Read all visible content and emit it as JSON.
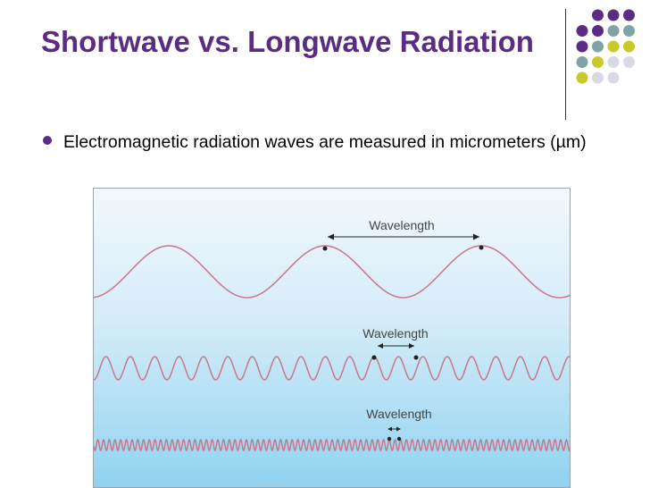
{
  "slide": {
    "title": "Shortwave vs. Longwave Radiation",
    "bullets": [
      "Electromagnetic radiation waves are measured in micrometers (µm)"
    ]
  },
  "figure": {
    "labels": [
      "Wavelength",
      "Wavelength",
      "Wavelength"
    ]
  },
  "colors": {
    "title": "#5b2c83",
    "dot_purple": "#5b2c83",
    "dot_teal": "#7fa3a6",
    "dot_yellow": "#c9c92a",
    "dot_light": "#d9d9e3",
    "wave": "#c7778a"
  }
}
